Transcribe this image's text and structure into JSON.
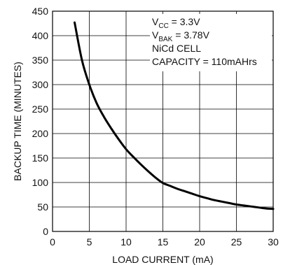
{
  "chart_data": {
    "type": "line",
    "title": "",
    "xlabel": "LOAD CURRENT (mA)",
    "ylabel": "BACKUP TIME (MINUTES)",
    "xlim": [
      0,
      30
    ],
    "ylim": [
      0,
      450
    ],
    "x_ticks": [
      0,
      5,
      10,
      15,
      20,
      25,
      30
    ],
    "y_ticks": [
      0,
      50,
      100,
      150,
      200,
      250,
      300,
      350,
      400,
      450
    ],
    "grid": true,
    "line_color": "#000000",
    "grid_color": "#000000",
    "annotations": [
      {
        "main": "V",
        "sub": "CC",
        "rest": " = 3.3V"
      },
      {
        "main": "V",
        "sub": "BAK",
        "rest": " = 3.78V"
      },
      {
        "main": "NiCd CELL",
        "sub": "",
        "rest": ""
      },
      {
        "main": "CAPACITY = 110mAHrs",
        "sub": "",
        "rest": ""
      }
    ],
    "series": [
      {
        "x": [
          3,
          4,
          5,
          6,
          7,
          8,
          9,
          10,
          11,
          12,
          13,
          14,
          15,
          16,
          17,
          18,
          19,
          20,
          21,
          22,
          23,
          24,
          25,
          26,
          27,
          28,
          29,
          30
        ],
        "values": [
          427,
          350,
          300,
          262,
          234,
          210,
          188,
          168,
          152,
          137,
          123,
          110,
          99,
          93,
          87,
          82,
          77,
          72,
          68,
          64,
          61,
          58,
          55,
          53,
          51,
          49,
          47,
          46
        ]
      }
    ]
  }
}
